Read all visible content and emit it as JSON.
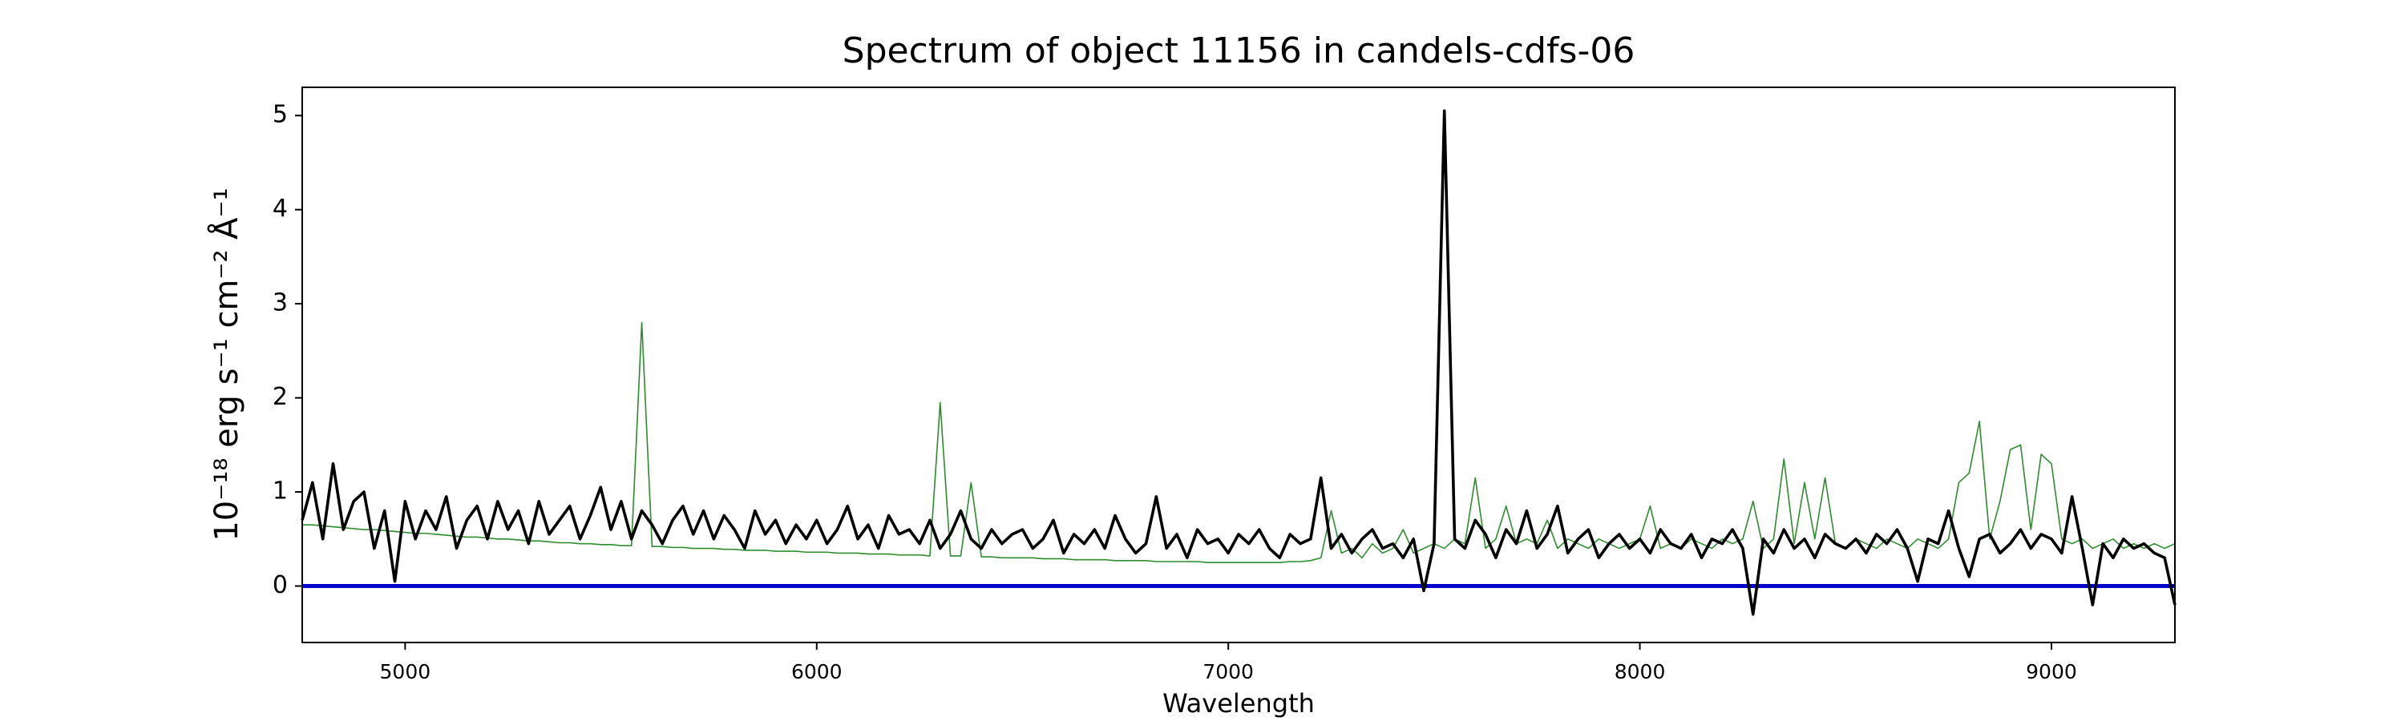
{
  "chart_data": {
    "type": "line",
    "title": "Spectrum of object 11156 in candels-cdfs-06",
    "xlabel": "Wavelength",
    "ylabel": "10⁻¹⁸ erg s⁻¹ cm⁻² Å⁻¹",
    "xlim": [
      4750,
      9300
    ],
    "ylim": [
      -0.6,
      5.3
    ],
    "xticks": [
      5000,
      6000,
      7000,
      8000,
      9000
    ],
    "yticks": [
      0,
      1,
      2,
      3,
      4,
      5
    ],
    "grid": false,
    "zero_line": {
      "value": 0,
      "color": "#0000cc"
    },
    "x": [
      4750,
      4775,
      4800,
      4825,
      4850,
      4875,
      4900,
      4925,
      4950,
      4975,
      5000,
      5025,
      5050,
      5075,
      5100,
      5125,
      5150,
      5175,
      5200,
      5225,
      5250,
      5275,
      5300,
      5325,
      5350,
      5375,
      5400,
      5425,
      5450,
      5475,
      5500,
      5525,
      5550,
      5575,
      5600,
      5625,
      5650,
      5675,
      5700,
      5725,
      5750,
      5775,
      5800,
      5825,
      5850,
      5875,
      5900,
      5925,
      5950,
      5975,
      6000,
      6025,
      6050,
      6075,
      6100,
      6125,
      6150,
      6175,
      6200,
      6225,
      6250,
      6275,
      6300,
      6325,
      6350,
      6375,
      6400,
      6425,
      6450,
      6475,
      6500,
      6525,
      6550,
      6575,
      6600,
      6625,
      6650,
      6675,
      6700,
      6725,
      6750,
      6775,
      6800,
      6825,
      6850,
      6875,
      6900,
      6925,
      6950,
      6975,
      7000,
      7025,
      7050,
      7075,
      7100,
      7125,
      7150,
      7175,
      7200,
      7225,
      7250,
      7275,
      7300,
      7325,
      7350,
      7375,
      7400,
      7425,
      7450,
      7475,
      7500,
      7525,
      7550,
      7575,
      7600,
      7625,
      7650,
      7675,
      7700,
      7725,
      7750,
      7775,
      7800,
      7825,
      7850,
      7875,
      7900,
      7925,
      7950,
      7975,
      8000,
      8025,
      8050,
      8075,
      8100,
      8125,
      8150,
      8175,
      8200,
      8225,
      8250,
      8275,
      8300,
      8325,
      8350,
      8375,
      8400,
      8425,
      8450,
      8475,
      8500,
      8525,
      8550,
      8575,
      8600,
      8625,
      8650,
      8675,
      8700,
      8725,
      8750,
      8775,
      8800,
      8825,
      8850,
      8875,
      8900,
      8925,
      8950,
      8975,
      9000,
      9025,
      9050,
      9075,
      9100,
      9125,
      9150,
      9175,
      9200,
      9225,
      9250,
      9275,
      9300
    ],
    "series": [
      {
        "color": "#2e8b2e",
        "width": 1.6,
        "values": [
          0.65,
          0.65,
          0.64,
          0.63,
          0.62,
          0.61,
          0.6,
          0.6,
          0.59,
          0.58,
          0.57,
          0.56,
          0.56,
          0.55,
          0.54,
          0.53,
          0.52,
          0.52,
          0.51,
          0.5,
          0.5,
          0.49,
          0.48,
          0.48,
          0.47,
          0.46,
          0.46,
          0.45,
          0.45,
          0.44,
          0.44,
          0.43,
          0.43,
          2.8,
          0.42,
          0.42,
          0.41,
          0.41,
          0.4,
          0.4,
          0.4,
          0.39,
          0.39,
          0.38,
          0.38,
          0.38,
          0.37,
          0.37,
          0.37,
          0.36,
          0.36,
          0.36,
          0.35,
          0.35,
          0.35,
          0.34,
          0.34,
          0.34,
          0.33,
          0.33,
          0.33,
          0.32,
          1.95,
          0.32,
          0.32,
          1.1,
          0.31,
          0.31,
          0.3,
          0.3,
          0.3,
          0.3,
          0.29,
          0.29,
          0.29,
          0.28,
          0.28,
          0.28,
          0.28,
          0.27,
          0.27,
          0.27,
          0.27,
          0.26,
          0.26,
          0.26,
          0.26,
          0.26,
          0.25,
          0.25,
          0.25,
          0.25,
          0.25,
          0.25,
          0.25,
          0.25,
          0.26,
          0.26,
          0.27,
          0.3,
          0.8,
          0.35,
          0.4,
          0.3,
          0.45,
          0.35,
          0.4,
          0.6,
          0.35,
          0.4,
          0.45,
          0.4,
          0.5,
          0.45,
          1.15,
          0.4,
          0.5,
          0.85,
          0.45,
          0.5,
          0.45,
          0.7,
          0.4,
          0.5,
          0.45,
          0.4,
          0.5,
          0.45,
          0.4,
          0.45,
          0.5,
          0.85,
          0.4,
          0.45,
          0.4,
          0.5,
          0.45,
          0.4,
          0.5,
          0.45,
          0.5,
          0.9,
          0.4,
          0.5,
          1.35,
          0.45,
          1.1,
          0.5,
          1.15,
          0.45,
          0.4,
          0.5,
          0.45,
          0.4,
          0.5,
          0.45,
          0.4,
          0.5,
          0.45,
          0.4,
          0.5,
          1.1,
          1.2,
          1.75,
          0.5,
          0.9,
          1.45,
          1.5,
          0.6,
          1.4,
          1.3,
          0.5,
          0.45,
          0.5,
          0.4,
          0.45,
          0.5,
          0.4,
          0.45,
          0.4,
          0.45,
          0.4,
          0.45
        ]
      },
      {
        "color": "#000000",
        "width": 3.6,
        "values": [
          0.7,
          1.1,
          0.5,
          1.3,
          0.6,
          0.9,
          1.0,
          0.4,
          0.8,
          0.05,
          0.9,
          0.5,
          0.8,
          0.6,
          0.95,
          0.4,
          0.7,
          0.85,
          0.5,
          0.9,
          0.6,
          0.8,
          0.45,
          0.9,
          0.55,
          0.7,
          0.85,
          0.5,
          0.75,
          1.05,
          0.6,
          0.9,
          0.5,
          0.8,
          0.65,
          0.45,
          0.7,
          0.85,
          0.55,
          0.8,
          0.5,
          0.75,
          0.6,
          0.4,
          0.8,
          0.55,
          0.7,
          0.45,
          0.65,
          0.5,
          0.7,
          0.45,
          0.6,
          0.85,
          0.5,
          0.65,
          0.4,
          0.75,
          0.55,
          0.6,
          0.45,
          0.7,
          0.4,
          0.55,
          0.8,
          0.5,
          0.4,
          0.6,
          0.45,
          0.55,
          0.6,
          0.4,
          0.5,
          0.7,
          0.35,
          0.55,
          0.45,
          0.6,
          0.4,
          0.75,
          0.5,
          0.35,
          0.45,
          0.95,
          0.4,
          0.55,
          0.3,
          0.6,
          0.45,
          0.5,
          0.35,
          0.55,
          0.45,
          0.6,
          0.4,
          0.3,
          0.55,
          0.45,
          0.5,
          1.15,
          0.4,
          0.55,
          0.35,
          0.5,
          0.6,
          0.4,
          0.45,
          0.3,
          0.5,
          -0.05,
          0.45,
          5.05,
          0.5,
          0.4,
          0.7,
          0.55,
          0.3,
          0.6,
          0.45,
          0.8,
          0.4,
          0.55,
          0.85,
          0.35,
          0.5,
          0.6,
          0.3,
          0.45,
          0.55,
          0.4,
          0.5,
          0.35,
          0.6,
          0.45,
          0.4,
          0.55,
          0.3,
          0.5,
          0.45,
          0.6,
          0.4,
          -0.3,
          0.5,
          0.35,
          0.6,
          0.4,
          0.5,
          0.3,
          0.55,
          0.45,
          0.4,
          0.5,
          0.35,
          0.55,
          0.45,
          0.6,
          0.4,
          0.05,
          0.5,
          0.45,
          0.8,
          0.4,
          0.1,
          0.5,
          0.55,
          0.35,
          0.45,
          0.6,
          0.4,
          0.55,
          0.5,
          0.35,
          0.95,
          0.4,
          -0.2,
          0.45,
          0.3,
          0.5,
          0.4,
          0.45,
          0.35,
          0.3,
          -0.2
        ]
      }
    ]
  }
}
